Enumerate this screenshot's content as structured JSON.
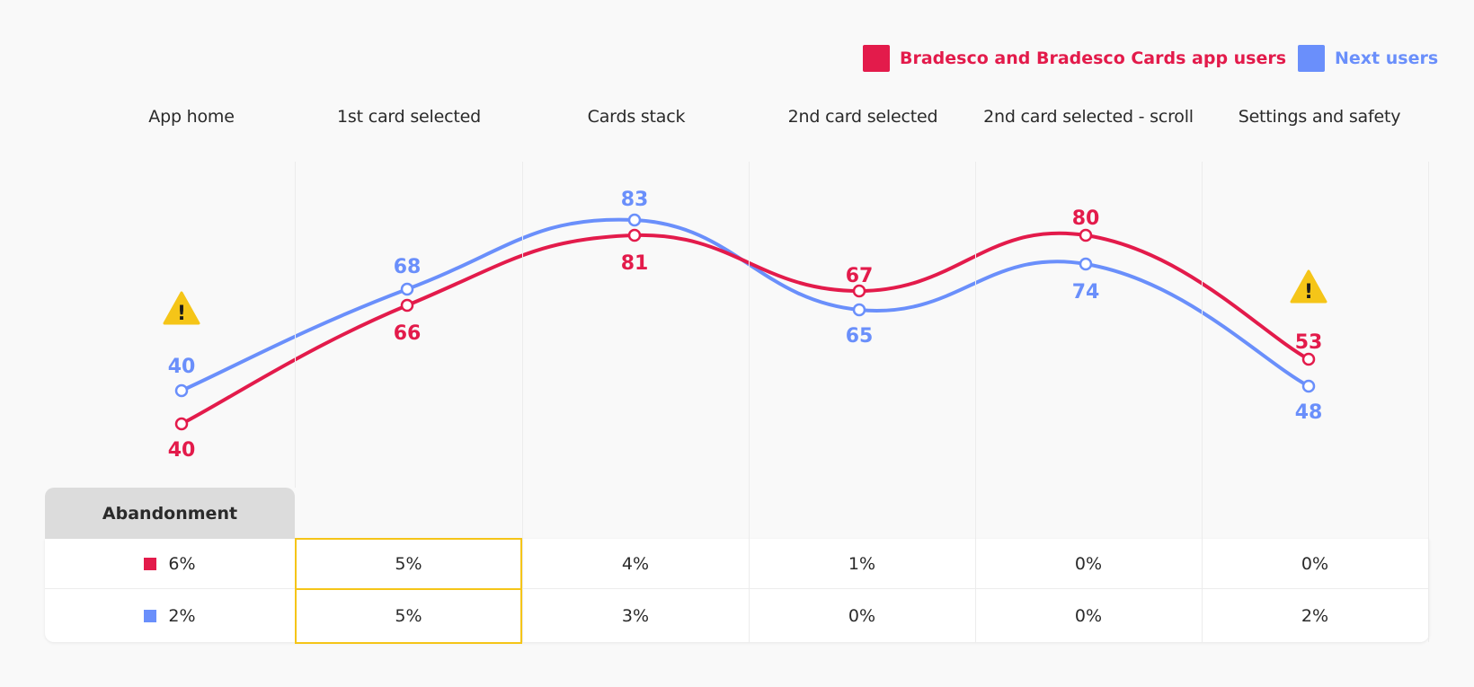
{
  "legend": {
    "series1": "Bradesco and Bradesco Cards app users",
    "series2": "Next users"
  },
  "colors": {
    "series1": "#e31b4b",
    "series2": "#6a8ffb",
    "warning": "#f5c518",
    "highlight": "#f5c518"
  },
  "chart_data": {
    "type": "line",
    "categories": [
      "App home",
      "1st card selected",
      "Cards stack",
      "2nd card selected",
      "2nd card selected - scroll",
      "Settings and safety"
    ],
    "series": [
      {
        "name": "Bradesco and Bradesco Cards app users",
        "values": [
          40,
          66,
          81,
          67,
          80,
          53
        ]
      },
      {
        "name": "Next users",
        "values": [
          40,
          68,
          83,
          65,
          74,
          48
        ]
      }
    ],
    "value_labels": [
      [
        "40",
        "66",
        "81",
        "67",
        "80",
        "53"
      ],
      [
        "40",
        "68",
        "83",
        "65",
        "74",
        "48"
      ]
    ],
    "warnings": [
      "App home",
      "Settings and safety"
    ],
    "warning_glyph": "!",
    "title": "",
    "xlabel": "",
    "ylabel": ""
  },
  "table": {
    "header": "Abandonment",
    "rows": [
      {
        "series": "Bradesco and Bradesco Cards app users",
        "first": "6%",
        "values": [
          "5%",
          "4%",
          "1%",
          "0%",
          "0%"
        ]
      },
      {
        "series": "Next users",
        "first": "2%",
        "values": [
          "5%",
          "3%",
          "0%",
          "0%",
          "2%"
        ]
      }
    ],
    "highlighted_column": "1st card selected"
  }
}
